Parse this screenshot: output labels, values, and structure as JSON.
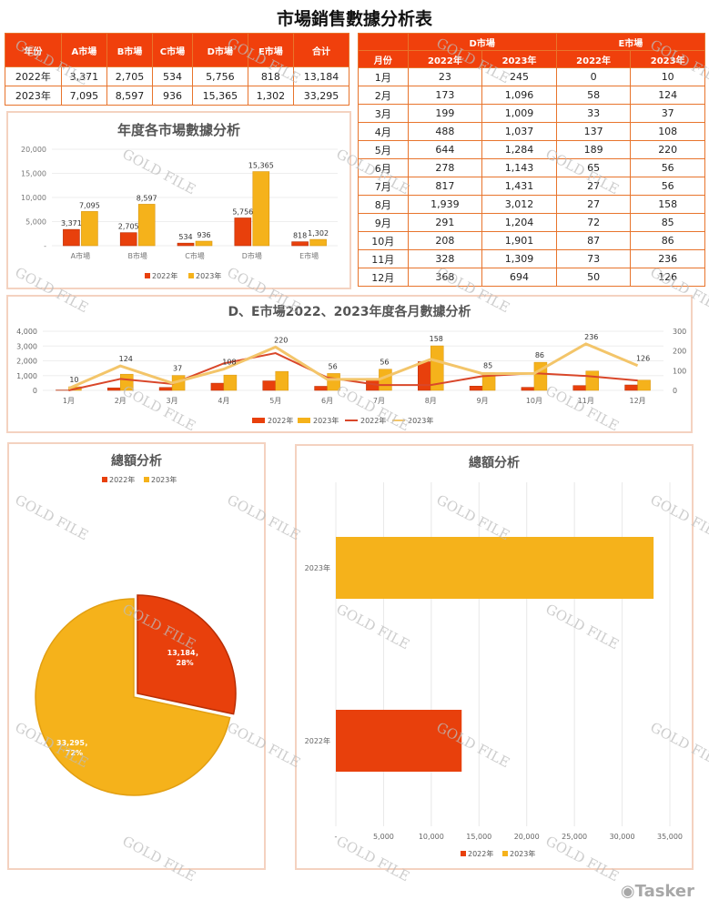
{
  "title": "市場銷售數據分析表",
  "summary_table": {
    "headers": [
      "年份",
      "A市場",
      "B市場",
      "C市場",
      "D市場",
      "E市場",
      "合计"
    ],
    "rows": [
      [
        "2022年",
        "3,371",
        "2,705",
        "534",
        "5,756",
        "818",
        "13,184"
      ],
      [
        "2023年",
        "7,095",
        "8,597",
        "936",
        "15,365",
        "1,302",
        "33,295"
      ]
    ]
  },
  "monthly_table": {
    "group_headers": [
      "D市場",
      "E市場"
    ],
    "month_header": "月份",
    "year_headers": [
      "2022年",
      "2023年",
      "2022年",
      "2023年"
    ],
    "rows": [
      [
        "1月",
        "23",
        "245",
        "0",
        "10"
      ],
      [
        "2月",
        "173",
        "1,096",
        "58",
        "124"
      ],
      [
        "3月",
        "199",
        "1,009",
        "33",
        "37"
      ],
      [
        "4月",
        "488",
        "1,037",
        "137",
        "108"
      ],
      [
        "5月",
        "644",
        "1,284",
        "189",
        "220"
      ],
      [
        "6月",
        "278",
        "1,143",
        "65",
        "56"
      ],
      [
        "7月",
        "817",
        "1,431",
        "27",
        "56"
      ],
      [
        "8月",
        "1,939",
        "3,012",
        "27",
        "158"
      ],
      [
        "9月",
        "291",
        "1,204",
        "72",
        "85"
      ],
      [
        "10月",
        "208",
        "1,901",
        "87",
        "86"
      ],
      [
        "11月",
        "328",
        "1,309",
        "73",
        "236"
      ],
      [
        "12月",
        "368",
        "694",
        "50",
        "126"
      ]
    ]
  },
  "colors": {
    "y2022": "#e8400c",
    "y2023": "#f5b21b",
    "border": "#f4d2c0"
  },
  "watermark": "GOLD FILE",
  "brand": "Tasker",
  "chart_data": [
    {
      "type": "bar",
      "title": "年度各市場數據分析",
      "categories": [
        "A市場",
        "B市場",
        "C市場",
        "D市場",
        "E市場"
      ],
      "series": [
        {
          "name": "2022年",
          "values": [
            3371,
            2705,
            534,
            5756,
            818
          ]
        },
        {
          "name": "2023年",
          "values": [
            7095,
            8597,
            936,
            15365,
            1302
          ]
        }
      ],
      "ylim": [
        0,
        20000
      ],
      "yticks": [
        "-",
        "5,000",
        "10,000",
        "15,000",
        "20,000"
      ],
      "legend": "bottom"
    },
    {
      "type": "bar",
      "title": "D、E市場2022、2023年度各月數據分析",
      "categories": [
        "1月",
        "2月",
        "3月",
        "4月",
        "5月",
        "6月",
        "7月",
        "8月",
        "9月",
        "10月",
        "11月",
        "12月"
      ],
      "series": [
        {
          "name": "2022年",
          "kind": "bar",
          "axis": "left",
          "values": [
            23,
            173,
            199,
            488,
            644,
            278,
            817,
            1939,
            291,
            208,
            328,
            368
          ]
        },
        {
          "name": "2023年",
          "kind": "bar",
          "axis": "left",
          "values": [
            245,
            1096,
            1009,
            1037,
            1284,
            1143,
            1431,
            3012,
            1204,
            1901,
            1309,
            694
          ]
        },
        {
          "name": "2022年",
          "kind": "line",
          "axis": "right",
          "values": [
            0,
            58,
            33,
            137,
            189,
            65,
            27,
            27,
            72,
            87,
            73,
            50
          ]
        },
        {
          "name": "2023年",
          "kind": "line",
          "axis": "right",
          "values": [
            10,
            124,
            37,
            108,
            220,
            56,
            56,
            158,
            85,
            86,
            236,
            126
          ]
        }
      ],
      "ylim": [
        0,
        4000
      ],
      "yticks_left": [
        "0",
        "1,000",
        "2,000",
        "3,000",
        "4,000"
      ],
      "y2lim": [
        0,
        300
      ],
      "yticks_right": [
        "0",
        "100",
        "200",
        "300"
      ],
      "data_labels": [
        "10",
        "124",
        "37",
        "108",
        "220",
        "56",
        "56",
        "158",
        "85",
        "86",
        "236",
        "126"
      ],
      "legend": "bottom"
    },
    {
      "type": "pie",
      "title": "總額分析",
      "labels": [
        "2022年",
        "2023年"
      ],
      "values": [
        13184,
        33295
      ],
      "data_labels": [
        "13,184，\n28%",
        "33,295，\n72%"
      ],
      "legend": "top"
    },
    {
      "type": "bar",
      "orientation": "horizontal",
      "title": "總額分析",
      "categories": [
        "2023年",
        "2022年"
      ],
      "series": [
        {
          "name": "2022年",
          "values": [
            null,
            13184
          ]
        },
        {
          "name": "2023年",
          "values": [
            33295,
            null
          ]
        }
      ],
      "xlim": [
        0,
        35000
      ],
      "xticks": [
        "-",
        "5,000",
        "10,000",
        "15,000",
        "20,000",
        "25,000",
        "30,000",
        "35,000"
      ],
      "legend": "bottom"
    }
  ]
}
